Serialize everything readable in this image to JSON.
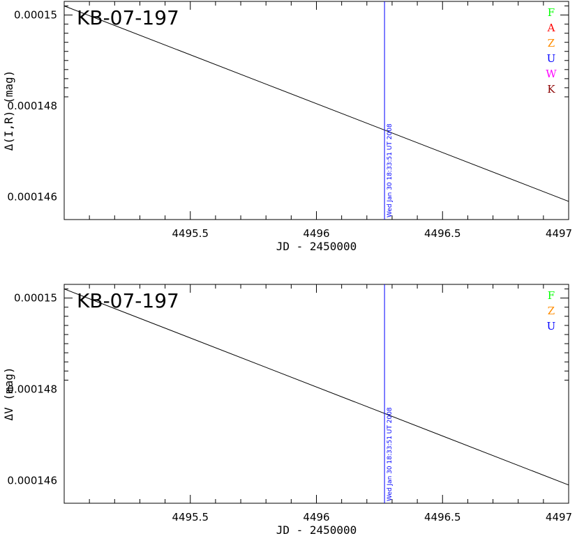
{
  "chart_data": [
    {
      "type": "line",
      "title": "KB-07-197",
      "xlabel": "JD - 2450000",
      "ylabel": "Δ(I,R) (mag)",
      "xlim": [
        4495.0,
        4497.0
      ],
      "ylim": [
        0.0001503,
        0.0001455
      ],
      "x_ticks": [
        4495.5,
        4496,
        4496.5,
        4497
      ],
      "x_tick_labels": [
        "4495.5",
        "4496",
        "4496.5",
        "4497"
      ],
      "y_ticks": [
        0.00015,
        0.000148,
        0.000146
      ],
      "y_tick_labels": [
        "0.00015",
        "0.000148",
        "0.000146"
      ],
      "series": [
        {
          "x": [
            4495.0,
            4497.0
          ],
          "y": [
            0.0001502,
            0.0001459
          ],
          "color": "#000000"
        }
      ],
      "vertical_marker": {
        "x": 4496.27,
        "label": "Wed Jan 30 18:33:51 UT 2008",
        "color": "#0000ff"
      },
      "legend": [
        {
          "label": "F",
          "color": "#00ff00"
        },
        {
          "label": "A",
          "color": "#ff0000"
        },
        {
          "label": "Z",
          "color": "#ff8c00"
        },
        {
          "label": "U",
          "color": "#0000ff"
        },
        {
          "label": "W",
          "color": "#ff00ff"
        },
        {
          "label": "K",
          "color": "#8b0000"
        }
      ],
      "legend_position": "top-right",
      "grid": false
    },
    {
      "type": "line",
      "title": "KB-07-197",
      "xlabel": "JD - 2450000",
      "ylabel": "ΔV (mag)",
      "xlim": [
        4495.0,
        4497.0
      ],
      "ylim": [
        0.0001503,
        0.0001455
      ],
      "x_ticks": [
        4495.5,
        4496,
        4496.5,
        4497
      ],
      "x_tick_labels": [
        "4495.5",
        "4496",
        "4496.5",
        "4497"
      ],
      "y_ticks": [
        0.00015,
        0.000148,
        0.000146
      ],
      "y_tick_labels": [
        "0.00015",
        "0.000148",
        "0.000146"
      ],
      "series": [
        {
          "x": [
            4495.0,
            4497.0
          ],
          "y": [
            0.0001502,
            0.0001459
          ],
          "color": "#000000"
        }
      ],
      "vertical_marker": {
        "x": 4496.27,
        "label": "Wed Jan 30 18:33:51 UT 2008",
        "color": "#0000ff"
      },
      "legend": [
        {
          "label": "F",
          "color": "#00ff00"
        },
        {
          "label": "Z",
          "color": "#ff8c00"
        },
        {
          "label": "U",
          "color": "#0000ff"
        }
      ],
      "legend_position": "top-right",
      "grid": false
    }
  ]
}
